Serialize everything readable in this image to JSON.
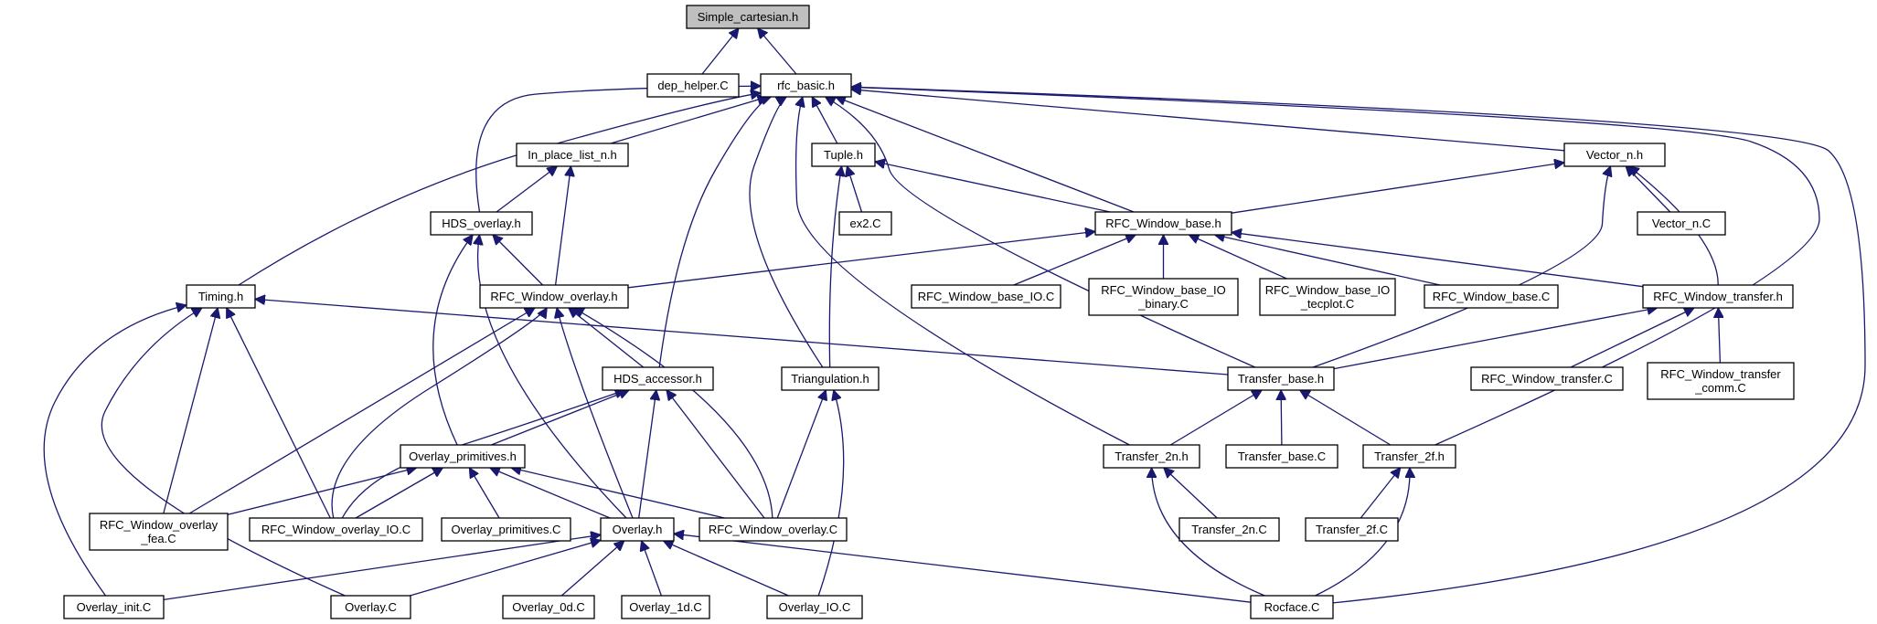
{
  "graph": {
    "root": "simple_cartesian",
    "nodes": [
      {
        "id": "simple_cartesian",
        "lines": [
          "Simple_cartesian.h"
        ]
      },
      {
        "id": "dep_helper",
        "lines": [
          "dep_helper.C"
        ]
      },
      {
        "id": "rfc_basic",
        "lines": [
          "rfc_basic.h"
        ]
      },
      {
        "id": "in_place_list",
        "lines": [
          "In_place_list_n.h"
        ]
      },
      {
        "id": "tuple",
        "lines": [
          "Tuple.h"
        ]
      },
      {
        "id": "vector_n",
        "lines": [
          "Vector_n.h"
        ]
      },
      {
        "id": "hds_overlay",
        "lines": [
          "HDS_overlay.h"
        ]
      },
      {
        "id": "ex2",
        "lines": [
          "ex2.C"
        ]
      },
      {
        "id": "rfc_window_base",
        "lines": [
          "RFC_Window_base.h"
        ]
      },
      {
        "id": "vector_n_c",
        "lines": [
          "Vector_n.C"
        ]
      },
      {
        "id": "timing",
        "lines": [
          "Timing.h"
        ]
      },
      {
        "id": "rfc_window_overlay_h",
        "lines": [
          "RFC_Window_overlay.h"
        ]
      },
      {
        "id": "rfc_window_base_io",
        "lines": [
          "RFC_Window_base_IO.C"
        ]
      },
      {
        "id": "rfc_window_base_io_binary",
        "lines": [
          "RFC_Window_base_IO",
          "_binary.C"
        ]
      },
      {
        "id": "rfc_window_base_io_tecplot",
        "lines": [
          "RFC_Window_base_IO",
          "_tecplot.C"
        ]
      },
      {
        "id": "rfc_window_base_c",
        "lines": [
          "RFC_Window_base.C"
        ]
      },
      {
        "id": "rfc_window_transfer_h",
        "lines": [
          "RFC_Window_transfer.h"
        ]
      },
      {
        "id": "hds_accessor",
        "lines": [
          "HDS_accessor.h"
        ]
      },
      {
        "id": "triangulation",
        "lines": [
          "Triangulation.h"
        ]
      },
      {
        "id": "transfer_base_h",
        "lines": [
          "Transfer_base.h"
        ]
      },
      {
        "id": "rfc_window_transfer_c",
        "lines": [
          "RFC_Window_transfer.C"
        ]
      },
      {
        "id": "rfc_window_transfer_comm",
        "lines": [
          "RFC_Window_transfer",
          "_comm.C"
        ]
      },
      {
        "id": "overlay_primitives_h",
        "lines": [
          "Overlay_primitives.h"
        ]
      },
      {
        "id": "transfer_2n_h",
        "lines": [
          "Transfer_2n.h"
        ]
      },
      {
        "id": "transfer_base_c",
        "lines": [
          "Transfer_base.C"
        ]
      },
      {
        "id": "transfer_2f_h",
        "lines": [
          "Transfer_2f.h"
        ]
      },
      {
        "id": "rfc_window_overlay_fea",
        "lines": [
          "RFC_Window_overlay",
          "_fea.C"
        ]
      },
      {
        "id": "rfc_window_overlay_io",
        "lines": [
          "RFC_Window_overlay_IO.C"
        ]
      },
      {
        "id": "overlay_primitives_c",
        "lines": [
          "Overlay_primitives.C"
        ]
      },
      {
        "id": "overlay_h",
        "lines": [
          "Overlay.h"
        ]
      },
      {
        "id": "rfc_window_overlay_c",
        "lines": [
          "RFC_Window_overlay.C"
        ]
      },
      {
        "id": "transfer_2n_c",
        "lines": [
          "Transfer_2n.C"
        ]
      },
      {
        "id": "transfer_2f_c",
        "lines": [
          "Transfer_2f.C"
        ]
      },
      {
        "id": "overlay_init",
        "lines": [
          "Overlay_init.C"
        ]
      },
      {
        "id": "overlay_c",
        "lines": [
          "Overlay.C"
        ]
      },
      {
        "id": "overlay_0d",
        "lines": [
          "Overlay_0d.C"
        ]
      },
      {
        "id": "overlay_1d",
        "lines": [
          "Overlay_1d.C"
        ]
      },
      {
        "id": "overlay_io",
        "lines": [
          "Overlay_IO.C"
        ]
      },
      {
        "id": "rocface",
        "lines": [
          "Rocface.C"
        ]
      }
    ],
    "edges": [
      {
        "from": "dep_helper",
        "to": "simple_cartesian"
      },
      {
        "from": "rfc_basic",
        "to": "simple_cartesian"
      },
      {
        "from": "in_place_list",
        "to": "rfc_basic"
      },
      {
        "from": "tuple",
        "to": "rfc_basic"
      },
      {
        "from": "vector_n",
        "to": "rfc_basic"
      },
      {
        "from": "hds_overlay",
        "to": "rfc_basic"
      },
      {
        "from": "timing",
        "to": "rfc_basic"
      },
      {
        "from": "rfc_window_base",
        "to": "rfc_basic"
      },
      {
        "from": "hds_accessor",
        "to": "rfc_basic"
      },
      {
        "from": "triangulation",
        "to": "rfc_basic"
      },
      {
        "from": "transfer_base_h",
        "to": "rfc_basic"
      },
      {
        "from": "transfer_2n_h",
        "to": "rfc_basic"
      },
      {
        "from": "transfer_2f_h",
        "to": "rfc_basic"
      },
      {
        "from": "rocface",
        "to": "rfc_basic"
      },
      {
        "from": "hds_overlay",
        "to": "in_place_list"
      },
      {
        "from": "rfc_window_overlay_h",
        "to": "in_place_list"
      },
      {
        "from": "ex2",
        "to": "tuple"
      },
      {
        "from": "rfc_window_base",
        "to": "tuple"
      },
      {
        "from": "triangulation",
        "to": "tuple"
      },
      {
        "from": "rfc_window_base",
        "to": "vector_n"
      },
      {
        "from": "vector_n_c",
        "to": "vector_n"
      },
      {
        "from": "rfc_window_transfer_h",
        "to": "vector_n"
      },
      {
        "from": "transfer_base_h",
        "to": "vector_n"
      },
      {
        "from": "rfc_window_overlay_h",
        "to": "hds_overlay"
      },
      {
        "from": "overlay_primitives_h",
        "to": "hds_overlay"
      },
      {
        "from": "overlay_h",
        "to": "hds_overlay"
      },
      {
        "from": "rfc_window_overlay_h",
        "to": "rfc_window_base"
      },
      {
        "from": "rfc_window_base_io",
        "to": "rfc_window_base"
      },
      {
        "from": "rfc_window_base_io_binary",
        "to": "rfc_window_base"
      },
      {
        "from": "rfc_window_base_io_tecplot",
        "to": "rfc_window_base"
      },
      {
        "from": "rfc_window_base_c",
        "to": "rfc_window_base"
      },
      {
        "from": "rfc_window_transfer_h",
        "to": "rfc_window_base"
      },
      {
        "from": "transfer_base_h",
        "to": "timing"
      },
      {
        "from": "rfc_window_overlay_fea",
        "to": "timing"
      },
      {
        "from": "rfc_window_overlay_io",
        "to": "timing"
      },
      {
        "from": "overlay_init",
        "to": "timing"
      },
      {
        "from": "overlay_c",
        "to": "timing"
      },
      {
        "from": "hds_accessor",
        "to": "rfc_window_overlay_h"
      },
      {
        "from": "rfc_window_overlay_fea",
        "to": "rfc_window_overlay_h"
      },
      {
        "from": "rfc_window_overlay_io",
        "to": "rfc_window_overlay_h"
      },
      {
        "from": "overlay_h",
        "to": "rfc_window_overlay_h"
      },
      {
        "from": "rfc_window_overlay_c",
        "to": "rfc_window_overlay_h"
      },
      {
        "from": "transfer_base_h",
        "to": "rfc_window_transfer_h"
      },
      {
        "from": "rfc_window_transfer_c",
        "to": "rfc_window_transfer_h"
      },
      {
        "from": "rfc_window_transfer_comm",
        "to": "rfc_window_transfer_h"
      },
      {
        "from": "overlay_primitives_h",
        "to": "hds_accessor"
      },
      {
        "from": "rfc_window_overlay_io",
        "to": "hds_accessor"
      },
      {
        "from": "overlay_h",
        "to": "hds_accessor"
      },
      {
        "from": "rfc_window_overlay_c",
        "to": "hds_accessor"
      },
      {
        "from": "rfc_window_overlay_c",
        "to": "triangulation"
      },
      {
        "from": "overlay_io",
        "to": "triangulation"
      },
      {
        "from": "transfer_2n_h",
        "to": "transfer_base_h"
      },
      {
        "from": "transfer_base_c",
        "to": "transfer_base_h"
      },
      {
        "from": "transfer_2f_h",
        "to": "transfer_base_h"
      },
      {
        "from": "rfc_window_overlay_fea",
        "to": "overlay_primitives_h"
      },
      {
        "from": "rfc_window_overlay_io",
        "to": "overlay_primitives_h"
      },
      {
        "from": "overlay_primitives_c",
        "to": "overlay_primitives_h"
      },
      {
        "from": "overlay_h",
        "to": "overlay_primitives_h"
      },
      {
        "from": "rfc_window_overlay_c",
        "to": "overlay_primitives_h"
      },
      {
        "from": "transfer_2n_c",
        "to": "transfer_2n_h"
      },
      {
        "from": "rocface",
        "to": "transfer_2n_h"
      },
      {
        "from": "transfer_2f_c",
        "to": "transfer_2f_h"
      },
      {
        "from": "rocface",
        "to": "transfer_2f_h"
      },
      {
        "from": "overlay_init",
        "to": "overlay_h"
      },
      {
        "from": "overlay_c",
        "to": "overlay_h"
      },
      {
        "from": "overlay_0d",
        "to": "overlay_h"
      },
      {
        "from": "overlay_1d",
        "to": "overlay_h"
      },
      {
        "from": "overlay_io",
        "to": "overlay_h"
      },
      {
        "from": "rocface",
        "to": "overlay_h"
      }
    ]
  }
}
